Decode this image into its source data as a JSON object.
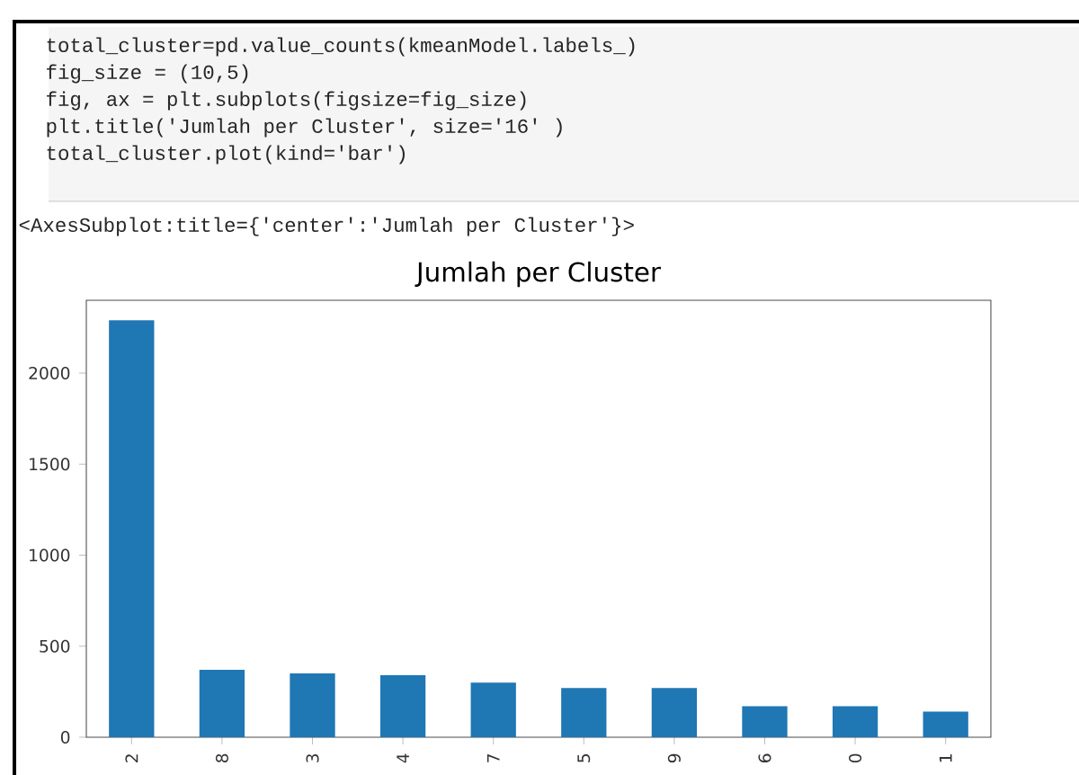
{
  "chart_data": {
    "type": "bar",
    "title": "Jumlah per Cluster",
    "categories": [
      "2",
      "8",
      "3",
      "4",
      "7",
      "5",
      "9",
      "6",
      "0",
      "1"
    ],
    "values": [
      2290,
      370,
      350,
      340,
      300,
      270,
      270,
      170,
      170,
      140
    ],
    "color": "#1f77b4",
    "ylim": [
      0,
      2400
    ],
    "yticks": [
      0,
      500,
      1000,
      1500,
      2000
    ],
    "annotations": [
      "total_cluster=pd.value_counts(kmeanModel.labels_)",
      "fig_size = (10,5)",
      "fig, ax = plt.subplots(figsize=fig_size)",
      "plt.title('Jumlah per Cluster', size='16' )",
      "total_cluster.plot(kind='bar')",
      "<AxesSubplot:title={'center':'Jumlah per Cluster'}>"
    ]
  }
}
